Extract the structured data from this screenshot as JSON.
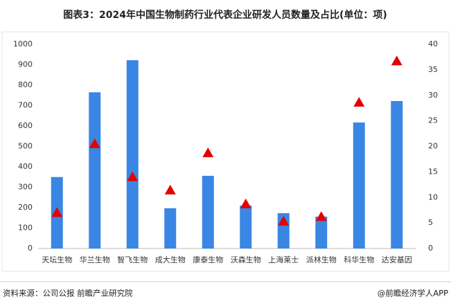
{
  "chart_data": {
    "type": "bar",
    "title": "图表3：2024年中国生物制药行业代表企业研发人员数量及占比(单位：项)",
    "categories": [
      "天坛生物",
      "华兰生物",
      "智飞生物",
      "成大生物",
      "康泰生物",
      "沃森生物",
      "上海莱士",
      "派林生物",
      "科华生物",
      "达安基因"
    ],
    "series": [
      {
        "color": "#3a86e4",
        "values": [
          350,
          765,
          922,
          197,
          356,
          210,
          173,
          156,
          617,
          722
        ]
      },
      {
        "color": "#e60000",
        "marker": "triangle",
        "axis": "y2",
        "values": [
          7.0,
          20.5,
          14.0,
          11.4,
          18.7,
          8.7,
          5.3,
          6.2,
          28.6,
          36.7
        ]
      }
    ],
    "ylim": [
      0,
      1000
    ],
    "yticks": [
      0,
      100,
      200,
      300,
      400,
      500,
      600,
      700,
      800,
      900,
      1000
    ],
    "y2lim": [
      0,
      40
    ],
    "y2ticks": [
      0,
      5,
      10,
      15,
      20,
      25,
      30,
      35,
      40
    ],
    "grid": false,
    "source": "资料来源：公司公报 前瞻产业研究院",
    "credit": "@前瞻经济学人APP"
  }
}
